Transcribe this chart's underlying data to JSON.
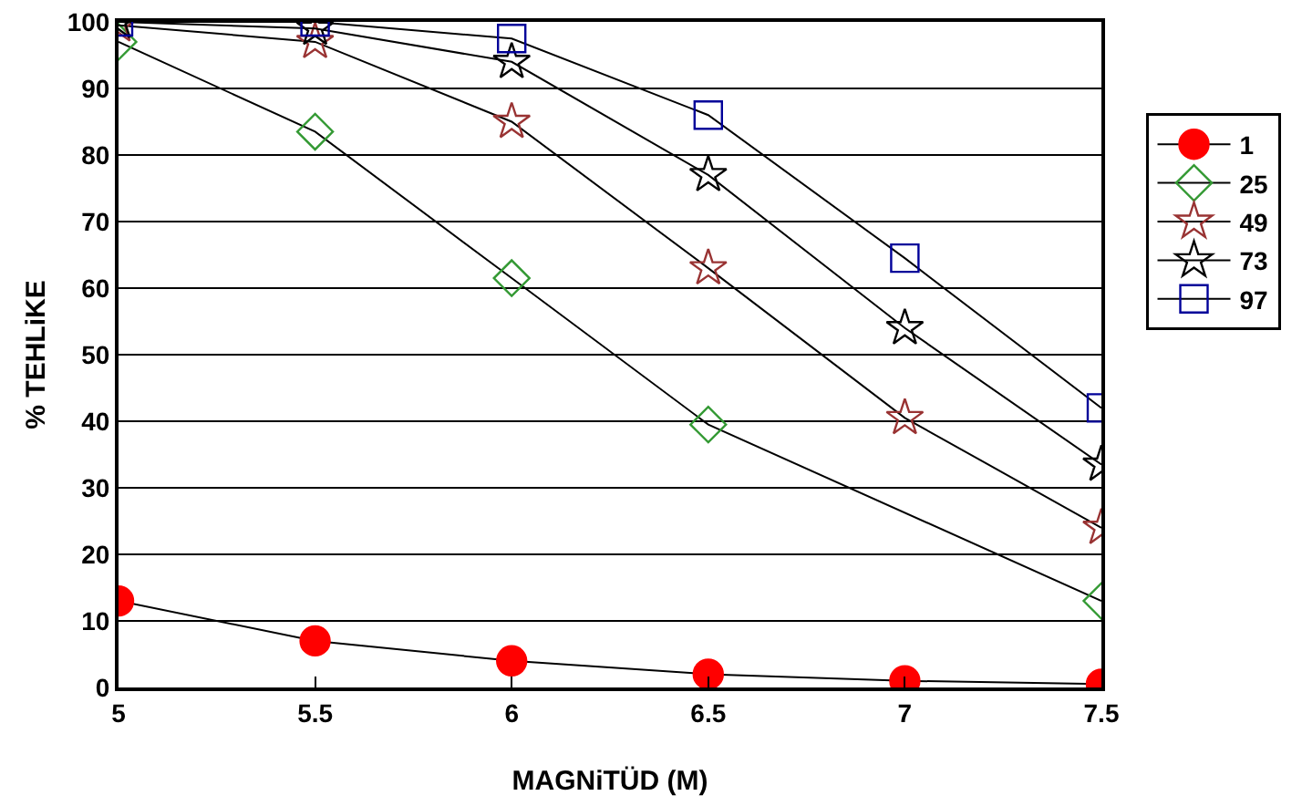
{
  "chart_data": {
    "type": "line",
    "xlabel": "MAGNiTÜD (M)",
    "ylabel": "% TEHLiKE",
    "x": [
      5,
      5.5,
      6,
      6.5,
      7,
      7.5
    ],
    "series": [
      {
        "name": "1",
        "color": "#ff0000",
        "marker": "circle",
        "values": [
          13,
          7,
          4,
          2,
          1,
          0.5
        ]
      },
      {
        "name": "25",
        "color": "#339933",
        "marker": "diamond",
        "x": [
          5,
          5.5,
          6,
          6.5,
          7.5
        ],
        "values": [
          97,
          83.5,
          61.5,
          39.5,
          13
        ]
      },
      {
        "name": "49",
        "color": "#993333",
        "marker": "star",
        "values": [
          99.5,
          97,
          85,
          63,
          40.5,
          24
        ]
      },
      {
        "name": "73",
        "color": "#000000",
        "marker": "star",
        "values": [
          100,
          99,
          94,
          77,
          54,
          33.5
        ]
      },
      {
        "name": "97",
        "color": "#000099",
        "marker": "square",
        "values": [
          100,
          100,
          97.5,
          86,
          64.5,
          42
        ]
      }
    ],
    "xlim": [
      5,
      7.5
    ],
    "xticks": [
      5,
      5.5,
      6,
      6.5,
      7,
      7.5
    ],
    "ylim": [
      0,
      100
    ],
    "yticks": [
      0,
      10,
      20,
      30,
      40,
      50,
      60,
      70,
      80,
      90,
      100
    ],
    "grid": "y",
    "legend": "right"
  }
}
